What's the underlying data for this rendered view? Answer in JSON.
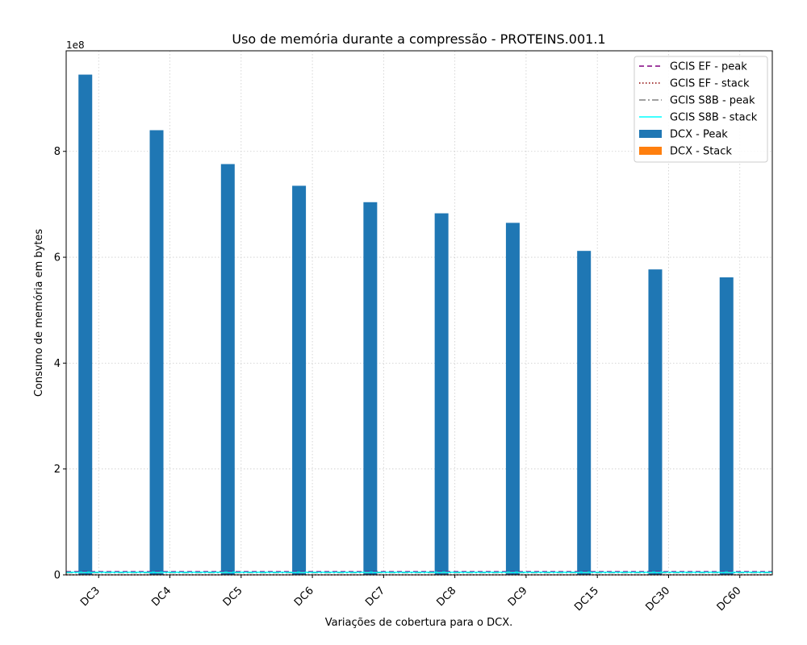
{
  "chart_data": {
    "type": "bar",
    "title": "Uso de memória durante a compressão -  PROTEINS.001.1",
    "xlabel": "Variações de cobertura para o DCX.",
    "ylabel": "Consumo de memória em bytes",
    "y_offset_text": "1e8",
    "categories": [
      "DC3",
      "DC4",
      "DC5",
      "DC6",
      "DC7",
      "DC8",
      "DC9",
      "DC15",
      "DC30",
      "DC60"
    ],
    "ylim": [
      0,
      9.9
    ],
    "yticks": [
      0,
      2,
      4,
      6,
      8
    ],
    "grid": true,
    "legend_position": "top-right",
    "series": [
      {
        "name": "DCX - Peak",
        "kind": "bar",
        "color": "#1f77b4",
        "values": [
          9.45,
          8.4,
          7.76,
          7.35,
          7.04,
          6.83,
          6.65,
          6.12,
          5.77,
          5.62
        ]
      },
      {
        "name": "DCX - Stack",
        "kind": "bar",
        "color": "#ff7f0e",
        "values": [
          0,
          0,
          0,
          0,
          0,
          0,
          0,
          0,
          0,
          0
        ]
      },
      {
        "name": "GCIS EF - peak",
        "kind": "hline",
        "style": "dashed",
        "color": "#800080",
        "value": 0.06
      },
      {
        "name": "GCIS EF - stack",
        "kind": "hline",
        "style": "dotted",
        "color": "#8b0000",
        "value": 0.0001
      },
      {
        "name": "GCIS S8B - peak",
        "kind": "hline",
        "style": "dashdot",
        "color": "#808080",
        "value": 0.04
      },
      {
        "name": "GCIS S8B - stack",
        "kind": "hline",
        "style": "solid",
        "color": "#00ffff",
        "value": 0.05
      }
    ]
  }
}
